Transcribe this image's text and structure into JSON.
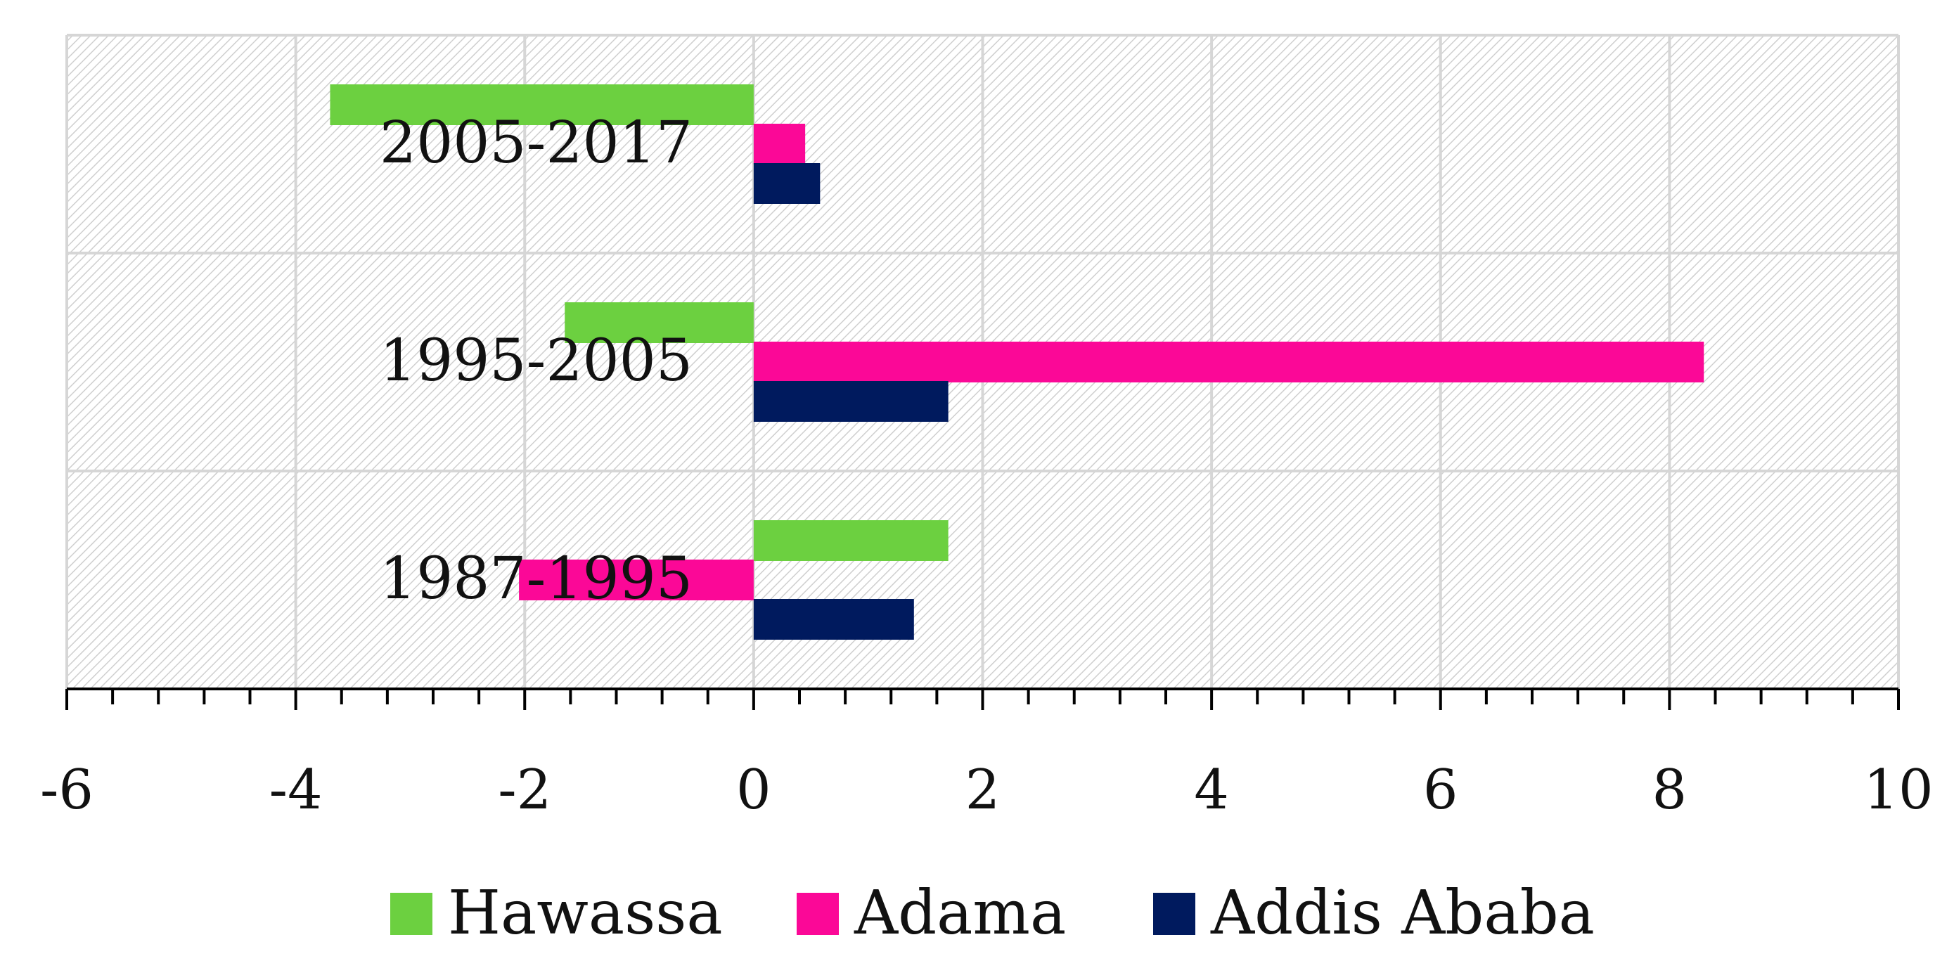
{
  "chart_data": {
    "type": "bar",
    "orientation": "horizontal",
    "categories": [
      "1987-1995",
      "1995-2005",
      "2005-2017"
    ],
    "series": [
      {
        "name": "Hawassa",
        "color": "#6cd040",
        "values": [
          1.7,
          -1.65,
          -3.7
        ]
      },
      {
        "name": "Adama",
        "color": "#fb0897",
        "values": [
          -2.05,
          8.3,
          0.45
        ]
      },
      {
        "name": "Addis Ababa",
        "color": "#001a5e",
        "values": [
          1.4,
          1.7,
          0.58
        ]
      }
    ],
    "x_ticks": [
      "-6",
      "-4",
      "-2",
      "0",
      "2",
      "4",
      "6",
      "8",
      "10"
    ],
    "xlim": [
      -6,
      10
    ],
    "title": "",
    "xlabel": "",
    "ylabel": "",
    "grid": true,
    "legend": "bottom",
    "plot_background": "hatched light gray"
  }
}
